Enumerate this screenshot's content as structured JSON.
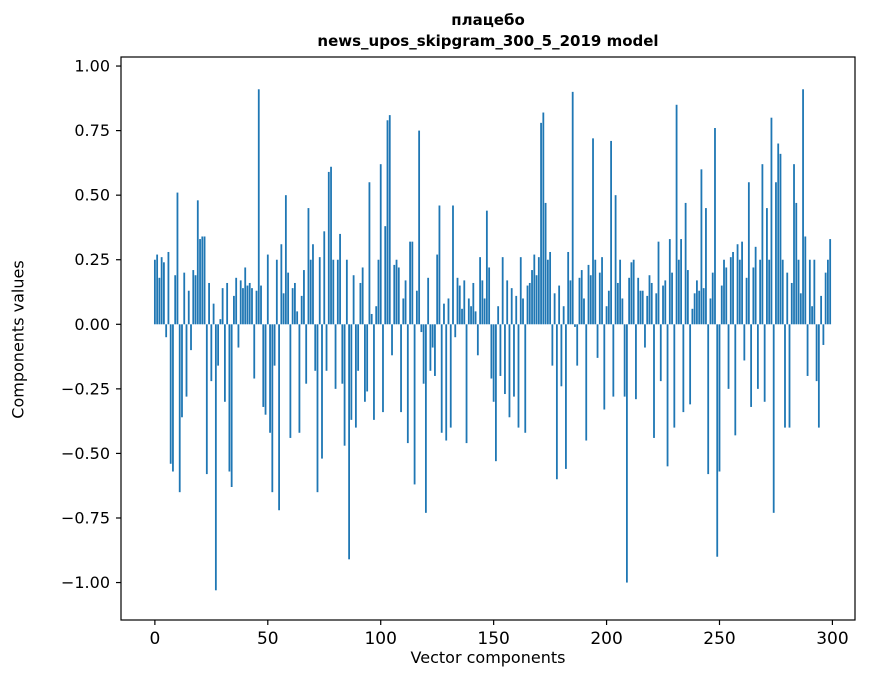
{
  "figure": {
    "background": "#ffffff"
  },
  "chart_data": {
    "type": "bar",
    "title": "плацебо\nnews_upos_skipgram_300_5_2019 model",
    "title_line1": "плацебо",
    "title_line2": "news_upos_skipgram_300_5_2019 model",
    "xlabel": "Vector components",
    "ylabel": "Components values",
    "bar_color": "#1f77b4",
    "axis_color": "#000000",
    "xlim": [
      -15,
      310
    ],
    "ylim": [
      -1.145,
      1.035
    ],
    "xticks": [
      0,
      50,
      100,
      150,
      200,
      250,
      300
    ],
    "xtick_labels": [
      "0",
      "50",
      "100",
      "150",
      "200",
      "250",
      "300"
    ],
    "yticks": [
      -1.0,
      -0.75,
      -0.5,
      -0.25,
      0.0,
      0.25,
      0.5,
      0.75,
      1.0
    ],
    "ytick_labels": [
      "−1.00",
      "−0.75",
      "−0.50",
      "−0.25",
      "0.00",
      "0.25",
      "0.50",
      "0.75",
      "1.00"
    ],
    "grid": false,
    "legend": null,
    "x_start": 0,
    "values": [
      0.25,
      0.27,
      0.18,
      0.26,
      0.24,
      -0.05,
      0.28,
      -0.54,
      -0.57,
      0.19,
      0.51,
      -0.65,
      -0.36,
      0.2,
      -0.28,
      0.13,
      -0.1,
      0.21,
      0.19,
      0.48,
      0.33,
      0.34,
      0.34,
      -0.58,
      0.16,
      -0.22,
      0.08,
      -1.03,
      -0.16,
      0.02,
      0.14,
      -0.3,
      0.16,
      -0.57,
      -0.63,
      0.11,
      0.18,
      -0.09,
      0.17,
      0.14,
      0.22,
      0.15,
      0.16,
      0.14,
      -0.21,
      0.13,
      0.91,
      0.15,
      -0.32,
      -0.35,
      0.27,
      -0.42,
      -0.65,
      -0.16,
      0.25,
      -0.72,
      0.31,
      0.12,
      0.5,
      0.2,
      -0.44,
      0.14,
      0.16,
      0.05,
      -0.42,
      0.11,
      0.21,
      -0.23,
      0.45,
      0.25,
      0.31,
      -0.18,
      -0.65,
      0.26,
      -0.52,
      0.36,
      -0.18,
      0.59,
      0.61,
      0.25,
      -0.25,
      0.25,
      0.35,
      -0.23,
      -0.47,
      0.25,
      -0.91,
      -0.37,
      0.19,
      -0.4,
      -0.18,
      0.16,
      0.22,
      -0.3,
      -0.26,
      0.55,
      0.04,
      -0.37,
      0.07,
      0.25,
      0.62,
      -0.34,
      0.38,
      0.79,
      0.81,
      -0.12,
      0.23,
      0.25,
      0.22,
      -0.34,
      0.1,
      0.17,
      -0.46,
      0.32,
      0.32,
      -0.62,
      0.13,
      0.75,
      -0.03,
      -0.23,
      -0.73,
      0.18,
      -0.18,
      -0.09,
      -0.2,
      0.27,
      0.46,
      -0.42,
      0.08,
      -0.45,
      0.1,
      -0.4,
      0.46,
      -0.05,
      0.18,
      0.15,
      0.06,
      0.17,
      -0.46,
      0.1,
      0.07,
      0.16,
      0.05,
      -0.12,
      0.26,
      0.17,
      0.1,
      0.44,
      0.22,
      -0.21,
      -0.3,
      -0.53,
      0.07,
      -0.2,
      0.26,
      -0.27,
      0.17,
      -0.36,
      0.14,
      -0.28,
      0.11,
      -0.4,
      0.26,
      0.1,
      -0.42,
      0.15,
      0.16,
      0.21,
      0.27,
      0.19,
      0.26,
      0.78,
      0.82,
      0.47,
      0.25,
      0.28,
      -0.16,
      0.12,
      -0.6,
      0.15,
      -0.24,
      0.07,
      -0.56,
      0.28,
      0.17,
      0.9,
      -0.01,
      -0.16,
      0.18,
      0.21,
      0.1,
      -0.45,
      0.23,
      0.19,
      0.72,
      0.25,
      -0.13,
      0.2,
      0.26,
      -0.33,
      0.07,
      0.13,
      0.71,
      -0.28,
      0.5,
      0.16,
      0.25,
      0.1,
      -0.28,
      -1.0,
      0.18,
      0.24,
      0.25,
      -0.29,
      0.18,
      0.13,
      0.13,
      -0.09,
      0.11,
      0.19,
      0.16,
      -0.44,
      0.12,
      0.32,
      -0.22,
      0.15,
      0.17,
      -0.55,
      0.33,
      0.2,
      -0.4,
      0.85,
      0.25,
      0.33,
      -0.34,
      0.47,
      0.21,
      -0.31,
      0.06,
      0.12,
      0.17,
      0.13,
      0.6,
      0.14,
      0.45,
      -0.58,
      0.1,
      0.2,
      0.76,
      -0.9,
      -0.57,
      0.15,
      0.25,
      0.22,
      -0.25,
      0.26,
      0.28,
      -0.43,
      0.31,
      0.25,
      0.32,
      -0.14,
      0.18,
      0.55,
      -0.32,
      0.22,
      0.3,
      -0.25,
      0.25,
      0.62,
      -0.3,
      0.45,
      0.25,
      0.8,
      -0.73,
      0.55,
      0.7,
      0.66,
      0.25,
      -0.4,
      0.2,
      -0.4,
      0.16,
      0.62,
      0.47,
      0.25,
      0.12,
      0.91,
      0.34,
      -0.2,
      0.25,
      0.07,
      0.25,
      -0.22,
      -0.4,
      0.11,
      -0.08,
      0.2,
      0.25,
      0.33
    ]
  }
}
